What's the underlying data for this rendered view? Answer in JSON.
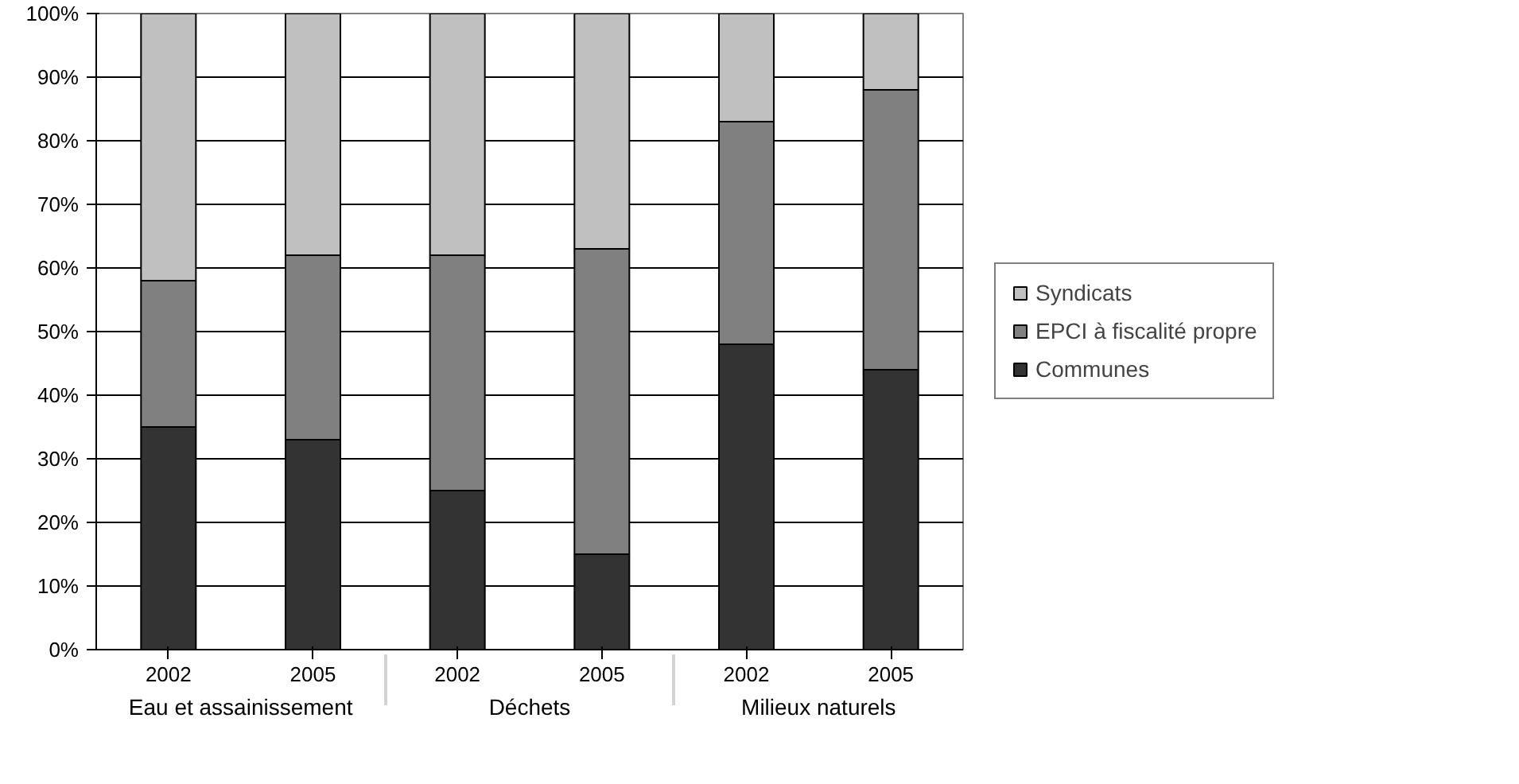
{
  "chart_data": {
    "type": "bar",
    "stacked": true,
    "categories": [
      "2002",
      "2005",
      "2002",
      "2005",
      "2002",
      "2005"
    ],
    "annotations": [
      "Eau et assainissement",
      "Déchets",
      "Milieux naturels"
    ],
    "series": [
      {
        "name": "Communes",
        "color": "#333333",
        "values": [
          35,
          33,
          25,
          15,
          48,
          44
        ]
      },
      {
        "name": "EPCI à fiscalité propre",
        "color": "#808080",
        "values": [
          23,
          29,
          37,
          48,
          35,
          44
        ]
      },
      {
        "name": "Syndicats",
        "color": "#c0c0c0",
        "values": [
          42,
          38,
          38,
          37,
          17,
          12
        ]
      }
    ],
    "ylim": [
      0,
      100
    ],
    "yticks": [
      {
        "value": 0,
        "label": "0%"
      },
      {
        "value": 10,
        "label": "10%"
      },
      {
        "value": 20,
        "label": "20%"
      },
      {
        "value": 30,
        "label": "30%"
      },
      {
        "value": 40,
        "label": "40%"
      },
      {
        "value": 50,
        "label": "50%"
      },
      {
        "value": 60,
        "label": "60%"
      },
      {
        "value": 70,
        "label": "70%"
      },
      {
        "value": 80,
        "label": "80%"
      },
      {
        "value": 90,
        "label": "90%"
      },
      {
        "value": 100,
        "label": "100%"
      }
    ],
    "grid": "y",
    "legend": "right"
  }
}
